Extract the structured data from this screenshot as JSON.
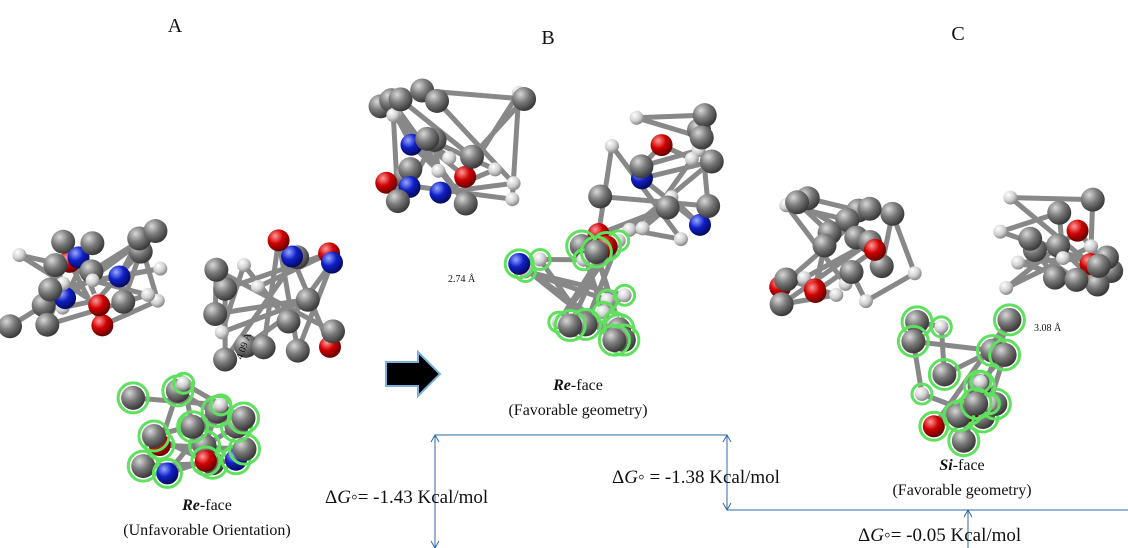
{
  "panels": [
    {
      "label": "A",
      "face": "Re",
      "face_suffix": "-face",
      "caption": "(Unfavorable Orientation)",
      "distance": "4.09 Å"
    },
    {
      "label": "B",
      "face": "Re",
      "face_suffix": "-face",
      "caption": "(Favorable geometry)",
      "distance": "2.74 Å"
    },
    {
      "label": "C",
      "face": "Si",
      "face_suffix": "-face",
      "caption": "(Favorable geometry)",
      "distance": "3.08 Å"
    }
  ],
  "energies": [
    {
      "delta": "Δ",
      "symbol": "G",
      "rest": "◦= -1.43 Kcal/mol"
    },
    {
      "delta": "Δ",
      "symbol": "G",
      "rest": "◦ = -1.38 Kcal/mol"
    },
    {
      "delta": "Δ",
      "symbol": "G",
      "rest": "◦= -0.05 Kcal/mol"
    }
  ]
}
